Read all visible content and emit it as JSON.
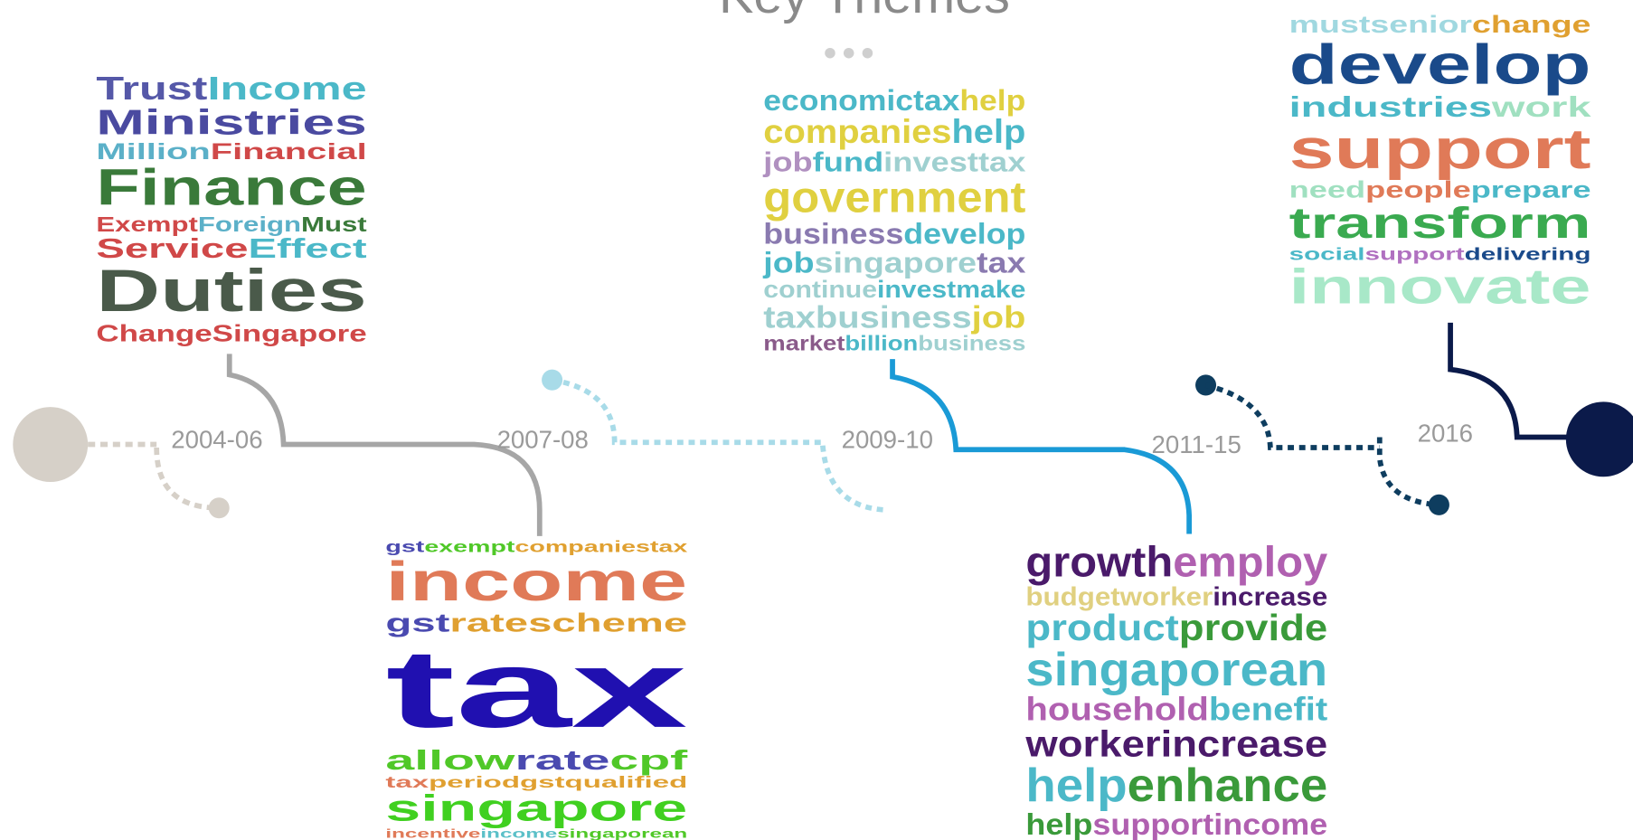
{
  "title": "Key Themes",
  "themes": [
    {
      "period": "2004-06",
      "lines": [
        [
          {
            "text": "Trust",
            "color": "#5558a8"
          },
          {
            "text": "Income",
            "color": "#4bb8c8"
          }
        ],
        [
          {
            "text": "Ministries",
            "color": "#4a4aa0"
          }
        ],
        [
          {
            "text": "Million",
            "color": "#5bb0c8"
          },
          {
            "text": "Financial",
            "color": "#d04848"
          }
        ],
        [
          {
            "text": "Finance",
            "color": "#3a7a3a"
          }
        ],
        [
          {
            "text": "Exempt",
            "color": "#d04848"
          },
          {
            "text": "Foreign",
            "color": "#5bb0c8"
          },
          {
            "text": "Must",
            "color": "#3a7a3a"
          }
        ],
        [
          {
            "text": "Service",
            "color": "#d04848"
          },
          {
            "text": "Effect",
            "color": "#4bb8c8"
          }
        ],
        [
          {
            "text": "Duties",
            "color": "#4a5a4a"
          }
        ],
        [
          {
            "text": "Change",
            "color": "#d04848"
          },
          {
            "text": "Singapore",
            "color": "#d04848"
          }
        ]
      ]
    },
    {
      "period": "2007-08",
      "lines": [
        [
          {
            "text": "gst",
            "color": "#4a4ab0"
          },
          {
            "text": "exempt",
            "color": "#50c828"
          },
          {
            "text": "companies",
            "color": "#e0a030"
          },
          {
            "text": "tax",
            "color": "#e0a030"
          }
        ],
        [
          {
            "text": "income",
            "color": "#e07a58"
          }
        ],
        [
          {
            "text": "gst",
            "color": "#4a4ab0"
          },
          {
            "text": "rate",
            "color": "#e0a030"
          },
          {
            "text": "scheme",
            "color": "#e0a030"
          }
        ],
        [
          {
            "text": "tax",
            "color": "#2010b0"
          }
        ],
        [
          {
            "text": "allow",
            "color": "#50c828"
          },
          {
            "text": "rate",
            "color": "#4a4ab0"
          },
          {
            "text": "cpf",
            "color": "#50c828"
          }
        ],
        [
          {
            "text": "tax",
            "color": "#e07a58"
          },
          {
            "text": "period",
            "color": "#e0a030"
          },
          {
            "text": "gst",
            "color": "#e0a030"
          },
          {
            "text": "qualified",
            "color": "#e0a030"
          }
        ],
        [
          {
            "text": "singapore",
            "color": "#40d020"
          }
        ],
        [
          {
            "text": "incentive",
            "color": "#e07a58"
          },
          {
            "text": "income",
            "color": "#5bc0c8"
          },
          {
            "text": "singaporean",
            "color": "#50c828"
          }
        ]
      ]
    },
    {
      "period": "2009-10",
      "lines": [
        [
          {
            "text": "economic",
            "color": "#4bb8c8"
          },
          {
            "text": "tax",
            "color": "#4bb8c8"
          },
          {
            "text": "help",
            "color": "#e0d040"
          }
        ],
        [
          {
            "text": "companies",
            "color": "#e0d040"
          },
          {
            "text": "help",
            "color": "#4bb8c8"
          }
        ],
        [
          {
            "text": "job",
            "color": "#b090c0"
          },
          {
            "text": "fund",
            "color": "#4bb8c8"
          },
          {
            "text": "invest",
            "color": "#9fd0d0"
          },
          {
            "text": "tax",
            "color": "#9fd0d0"
          }
        ],
        [
          {
            "text": "government",
            "color": "#e0d040"
          }
        ],
        [
          {
            "text": "business",
            "color": "#8a7ab0"
          },
          {
            "text": "develop",
            "color": "#4bb8c8"
          }
        ],
        [
          {
            "text": "job",
            "color": "#4bb8c8"
          },
          {
            "text": "singapore",
            "color": "#9fd0d0"
          },
          {
            "text": "tax",
            "color": "#8a7ab0"
          }
        ],
        [
          {
            "text": "continue",
            "color": "#9fd0d0"
          },
          {
            "text": "invest",
            "color": "#4bb8c8"
          },
          {
            "text": "make",
            "color": "#4bb8c8"
          }
        ],
        [
          {
            "text": "tax",
            "color": "#9fd0d0"
          },
          {
            "text": "business",
            "color": "#9fd0d0"
          },
          {
            "text": "job",
            "color": "#e0d040"
          }
        ],
        [
          {
            "text": "market",
            "color": "#8a5a8a"
          },
          {
            "text": "billion",
            "color": "#4bb8c8"
          },
          {
            "text": "business",
            "color": "#9fd0d0"
          }
        ]
      ]
    },
    {
      "period": "2011-15",
      "lines": [
        [
          {
            "text": "growth",
            "color": "#4a1a6a"
          },
          {
            "text": "employ",
            "color": "#b060b0"
          }
        ],
        [
          {
            "text": "budget",
            "color": "#e0d080"
          },
          {
            "text": "worker",
            "color": "#e0d080"
          },
          {
            "text": "increase",
            "color": "#4a1a6a"
          }
        ],
        [
          {
            "text": "product",
            "color": "#4bb8c8"
          },
          {
            "text": "provide",
            "color": "#3a9a3a"
          }
        ],
        [
          {
            "text": "singaporean",
            "color": "#4bb8c8"
          }
        ],
        [
          {
            "text": "household",
            "color": "#b060b0"
          },
          {
            "text": "benefit",
            "color": "#4bb8c8"
          }
        ],
        [
          {
            "text": "worker",
            "color": "#4a1a6a"
          },
          {
            "text": "increase",
            "color": "#4a1a6a"
          }
        ],
        [
          {
            "text": "help",
            "color": "#4bb8c8"
          },
          {
            "text": "enhance",
            "color": "#3a9a3a"
          }
        ],
        [
          {
            "text": "help",
            "color": "#3a9a3a"
          },
          {
            "text": "support",
            "color": "#b060b0"
          },
          {
            "text": "income",
            "color": "#b060b0"
          }
        ]
      ]
    },
    {
      "period": "2016",
      "lines": [
        [
          {
            "text": "must",
            "color": "#a0d8e0"
          },
          {
            "text": "senior",
            "color": "#a0d8e0"
          },
          {
            "text": "change",
            "color": "#e0a030"
          }
        ],
        [
          {
            "text": "develop",
            "color": "#1a4a8a"
          }
        ],
        [
          {
            "text": "industries",
            "color": "#4bb8c8"
          },
          {
            "text": "work",
            "color": "#a0e0c0"
          }
        ],
        [
          {
            "text": "support",
            "color": "#e07a58"
          }
        ],
        [
          {
            "text": "need",
            "color": "#a0e0c0"
          },
          {
            "text": "people",
            "color": "#e07a58"
          },
          {
            "text": "prepare",
            "color": "#4bb8c8"
          }
        ],
        [
          {
            "text": "transform",
            "color": "#3aaa50"
          }
        ],
        [
          {
            "text": "social",
            "color": "#4bb8c8"
          },
          {
            "text": "support",
            "color": "#b070c0"
          },
          {
            "text": "delivering",
            "color": "#1a4a8a"
          }
        ],
        [
          {
            "text": "innovate",
            "color": "#a8e8c8"
          }
        ]
      ]
    }
  ]
}
